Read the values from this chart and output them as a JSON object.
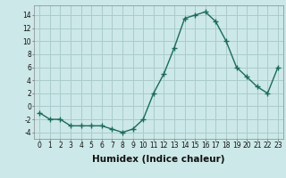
{
  "x": [
    0,
    1,
    2,
    3,
    4,
    5,
    6,
    7,
    8,
    9,
    10,
    11,
    12,
    13,
    14,
    15,
    16,
    17,
    18,
    19,
    20,
    21,
    22,
    23
  ],
  "y": [
    -1,
    -2,
    -2,
    -3,
    -3,
    -3,
    -3,
    -3.5,
    -4,
    -3.5,
    -2,
    2,
    5,
    9,
    13.5,
    14,
    14.5,
    13,
    10,
    6,
    4.5,
    3,
    2,
    6
  ],
  "line_color": "#1a6b5a",
  "marker_color": "#1a6b5a",
  "bg_color": "#cce8e8",
  "grid_color": "#aacccc",
  "xlabel": "Humidex (Indice chaleur)",
  "xlim": [
    -0.5,
    23.5
  ],
  "ylim": [
    -5,
    15.5
  ],
  "yticks": [
    -4,
    -2,
    0,
    2,
    4,
    6,
    8,
    10,
    12,
    14
  ],
  "xticks": [
    0,
    1,
    2,
    3,
    4,
    5,
    6,
    7,
    8,
    9,
    10,
    11,
    12,
    13,
    14,
    15,
    16,
    17,
    18,
    19,
    20,
    21,
    22,
    23
  ],
  "tick_fontsize": 5.5,
  "label_fontsize": 7.5,
  "line_width": 1.0,
  "marker_size": 4
}
